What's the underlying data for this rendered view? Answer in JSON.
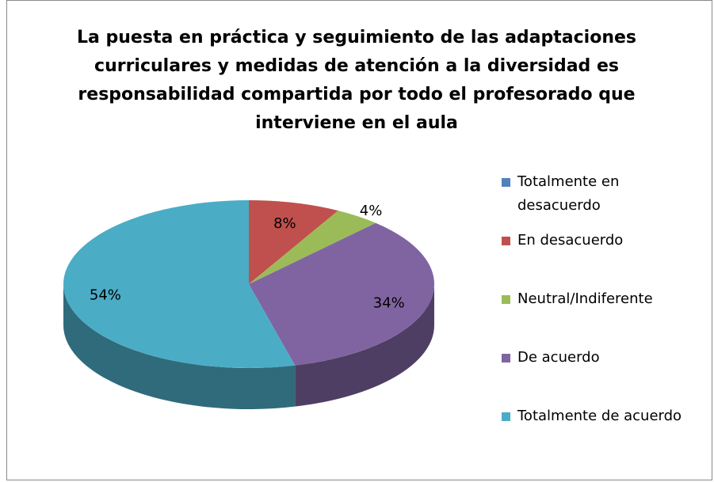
{
  "chart_data": {
    "type": "pie",
    "title": "La puesta en práctica y seguimiento de las adaptaciones curriculares y medidas de atención a la diversidad es responsabilidad compartida por todo el profesorado que interviene en el aula",
    "categories": [
      "Totalmente en desacuerdo",
      "En desacuerdo",
      "Neutral/Indiferente",
      "De acuerdo",
      "Totalmente de acuerdo"
    ],
    "values": [
      0,
      8,
      4,
      34,
      54
    ],
    "value_labels": [
      null,
      "8%",
      "4%",
      "34%",
      "54%"
    ],
    "colors": [
      "#4f81bd",
      "#c0504d",
      "#9bbb59",
      "#8064a2",
      "#4bacc6"
    ],
    "legend": "right"
  }
}
